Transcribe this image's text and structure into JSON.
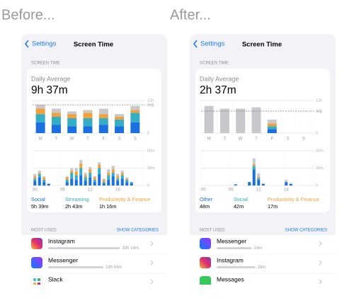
{
  "panels": [
    {
      "heading": "Before...",
      "nav": {
        "back": "Settings",
        "title": "Screen Time"
      },
      "section": "SCREEN TIME",
      "summary": {
        "label": "Daily Average",
        "value": "9h 37m"
      },
      "weekly": {
        "type": "bar",
        "stacked": true,
        "days": [
          "M",
          "T",
          "W",
          "T",
          "F",
          "S",
          "S"
        ],
        "ylim": [
          0,
          12
        ],
        "yticks": [
          0,
          {
            "value": 12,
            "label": "12h"
          }
        ],
        "avg": {
          "value": 10.4,
          "label": "avg"
        },
        "series": [
          {
            "color": "#1b6fe0",
            "values": [
              4,
              3,
              2.5,
              2.5,
              3,
              2.5,
              4
            ]
          },
          {
            "color": "#33aec4",
            "values": [
              3,
              3,
              3,
              3,
              2.5,
              2.5,
              3.5
            ]
          },
          {
            "color": "#f4a03a",
            "values": [
              2,
              1.5,
              1.5,
              2,
              1.5,
              1,
              1
            ]
          },
          {
            "color": "#c7c7cc",
            "values": [
              1.5,
              1.5,
              1,
              1,
              2,
              1,
              1.5
            ]
          }
        ]
      },
      "hourly": {
        "type": "bar",
        "stacked": true,
        "hours": [
          "00",
          null,
          null,
          null,
          null,
          null,
          "06",
          null,
          null,
          null,
          null,
          null,
          "12",
          null,
          null,
          null,
          null,
          null,
          "18",
          null,
          null,
          null,
          null,
          null
        ],
        "ylim": [
          0,
          60
        ],
        "yticks": [
          0,
          {
            "value": 30,
            "label": "30m"
          },
          {
            "value": 60,
            "label": "60m"
          }
        ],
        "series": [
          {
            "color": "#1b6fe0",
            "values": [
              8,
              14,
              6,
              3,
              0,
              0,
              0,
              6,
              12,
              10,
              18,
              8,
              14,
              6,
              20,
              4,
              10,
              16,
              8,
              12,
              6,
              4,
              0,
              0
            ]
          },
          {
            "color": "#33aec4",
            "values": [
              4,
              6,
              4,
              0,
              0,
              0,
              0,
              4,
              10,
              8,
              12,
              6,
              8,
              4,
              10,
              2,
              8,
              6,
              4,
              6,
              4,
              2,
              0,
              0
            ]
          },
          {
            "color": "#f4a03a",
            "values": [
              4,
              2,
              4,
              0,
              0,
              0,
              0,
              4,
              4,
              6,
              8,
              4,
              6,
              4,
              6,
              4,
              4,
              6,
              4,
              4,
              2,
              0,
              0,
              0
            ]
          },
          {
            "color": "#c7c7cc",
            "values": [
              4,
              4,
              2,
              0,
              0,
              0,
              0,
              2,
              4,
              6,
              6,
              4,
              4,
              2,
              4,
              2,
              6,
              6,
              4,
              4,
              2,
              0,
              0,
              0
            ]
          }
        ]
      },
      "legend": [
        {
          "name": "Social",
          "value": "5h 39m",
          "color": "#1b6fe0"
        },
        {
          "name": "Streaming",
          "value": "2h 43m",
          "color": "#33aec4"
        },
        {
          "name": "Productivity & Finance",
          "value": "1h 16m",
          "color": "#f4a03a"
        }
      ],
      "most_used": {
        "title": "MOST USED",
        "action": "SHOW CATEGORIES",
        "apps": [
          {
            "name": "Instagram",
            "time": "30h 14m"
          },
          {
            "name": "Messenger",
            "time": "14h 54m"
          },
          {
            "name": "Slack",
            "time": ""
          }
        ]
      }
    },
    {
      "heading": "After...",
      "nav": {
        "back": "Settings",
        "title": "Screen Time"
      },
      "section": "SCREEN TIME",
      "summary": {
        "label": "Daily Average",
        "value": "2h 37m"
      },
      "weekly": {
        "type": "bar",
        "stacked": true,
        "days": [
          "M",
          "T",
          "W",
          "T",
          "F",
          "S",
          "S"
        ],
        "ylim": [
          0,
          12
        ],
        "yticks": [
          0,
          {
            "value": 12,
            "label": "12h"
          }
        ],
        "avg": {
          "value": 8.1,
          "label": "avg"
        },
        "series": [
          {
            "color": "#1b6fe0",
            "values": [
              0,
              0,
              0,
              0,
              1.5,
              0,
              0
            ]
          },
          {
            "color": "#33aec4",
            "values": [
              0,
              0,
              0,
              0,
              1,
              0,
              0
            ]
          },
          {
            "color": "#f4a03a",
            "values": [
              0,
              0,
              0,
              0,
              1,
              0,
              0
            ]
          },
          {
            "color": "#c7c7cc",
            "values": [
              10,
              9,
              9,
              9.5,
              1.5,
              0,
              0
            ]
          }
        ]
      },
      "hourly": {
        "type": "bar",
        "stacked": true,
        "hours": [
          "00",
          null,
          null,
          null,
          null,
          null,
          "06",
          null,
          null,
          null,
          null,
          null,
          "12",
          null,
          null,
          null,
          null,
          null,
          "18",
          null,
          null,
          null,
          null,
          null
        ],
        "ylim": [
          0,
          60
        ],
        "yticks": [
          0,
          {
            "value": 30,
            "label": "30m"
          },
          {
            "value": 60,
            "label": "60m"
          }
        ],
        "series": [
          {
            "color": "#1b6fe0",
            "values": [
              0,
              0,
              0,
              0,
              0,
              0,
              0,
              2,
              0,
              0,
              6,
              28,
              10,
              3,
              0,
              0,
              0,
              0,
              6,
              3,
              0,
              0,
              0,
              0
            ]
          },
          {
            "color": "#33aec4",
            "values": [
              0,
              0,
              0,
              0,
              0,
              0,
              0,
              0,
              0,
              0,
              0,
              6,
              3,
              0,
              0,
              0,
              0,
              0,
              0,
              0,
              0,
              0,
              0,
              0
            ]
          },
          {
            "color": "#f4a03a",
            "values": [
              0,
              0,
              0,
              0,
              0,
              0,
              0,
              0,
              0,
              0,
              0,
              3,
              2,
              0,
              0,
              0,
              0,
              0,
              0,
              0,
              0,
              0,
              0,
              0
            ]
          },
          {
            "color": "#c7c7cc",
            "values": [
              0,
              0,
              0,
              0,
              0,
              0,
              0,
              0,
              0,
              0,
              0,
              10,
              6,
              0,
              0,
              0,
              0,
              0,
              4,
              0,
              0,
              0,
              0,
              0
            ]
          }
        ]
      },
      "legend": [
        {
          "name": "Other",
          "value": "48m",
          "color": "#1b6fe0"
        },
        {
          "name": "Social",
          "value": "42m",
          "color": "#33aec4"
        },
        {
          "name": "Productivity & Finance",
          "value": "17m",
          "color": "#f4a03a"
        }
      ],
      "most_used": {
        "title": "MOST USED",
        "action": "SHOW CATEGORIES",
        "apps": [
          {
            "name": "Messenger",
            "time": "14m"
          },
          {
            "name": "Instagram",
            "time": "18m"
          },
          {
            "name": "Messages",
            "time": ""
          }
        ]
      }
    }
  ]
}
